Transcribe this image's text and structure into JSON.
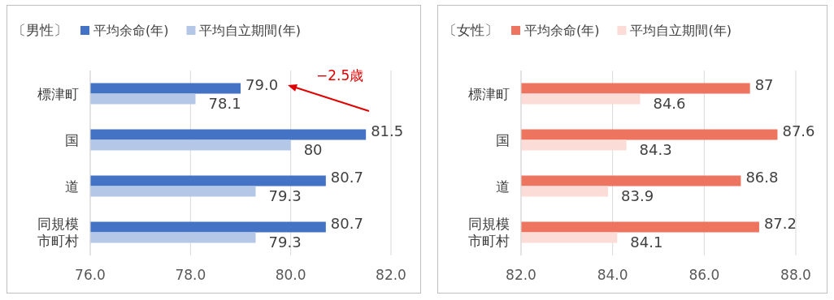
{
  "chart_data": [
    {
      "type": "bar",
      "orientation": "horizontal",
      "title": "〔男性〕",
      "categories": [
        "標津町",
        "国",
        "道",
        "同規模市町村"
      ],
      "series": [
        {
          "name": "平均余命(年)",
          "color": "#4472c4",
          "values": [
            79.0,
            81.5,
            80.7,
            80.7
          ],
          "value_labels": [
            "79.0",
            "81.5",
            "80.7",
            "80.7"
          ]
        },
        {
          "name": "平均自立期間(年)",
          "color": "#b4c7e7",
          "values": [
            78.1,
            80,
            79.3,
            79.3
          ],
          "value_labels": [
            "78.1",
            "80",
            "79.3",
            "79.3"
          ]
        }
      ],
      "xlim": [
        76,
        82
      ],
      "xticks": [
        {
          "value": 76,
          "label": "76.0"
        },
        {
          "value": 78,
          "label": "78.0"
        },
        {
          "value": 80,
          "label": "80.0"
        },
        {
          "value": 82,
          "label": "82.0"
        }
      ],
      "grid": "x",
      "legend": "top",
      "annotations": [
        "−2.5歳"
      ]
    },
    {
      "type": "bar",
      "orientation": "horizontal",
      "title": "〔女性〕",
      "categories": [
        "標津町",
        "国",
        "道",
        "同規模市町村"
      ],
      "series": [
        {
          "name": "平均余命(年)",
          "color": "#ed7560",
          "values": [
            87,
            87.6,
            86.8,
            87.2
          ],
          "value_labels": [
            "87",
            "87.6",
            "86.8",
            "87.2"
          ]
        },
        {
          "name": "平均自立期間(年)",
          "color": "#fbdcd7",
          "values": [
            84.6,
            84.3,
            83.9,
            84.1
          ],
          "value_labels": [
            "84.6",
            "84.3",
            "83.9",
            "84.1"
          ]
        }
      ],
      "xlim": [
        82,
        88
      ],
      "xticks": [
        {
          "value": 82,
          "label": "82.0"
        },
        {
          "value": 84,
          "label": "84.0"
        },
        {
          "value": 86,
          "label": "86.0"
        },
        {
          "value": 88,
          "label": "88.0"
        }
      ],
      "grid": "x",
      "legend": "top"
    }
  ]
}
